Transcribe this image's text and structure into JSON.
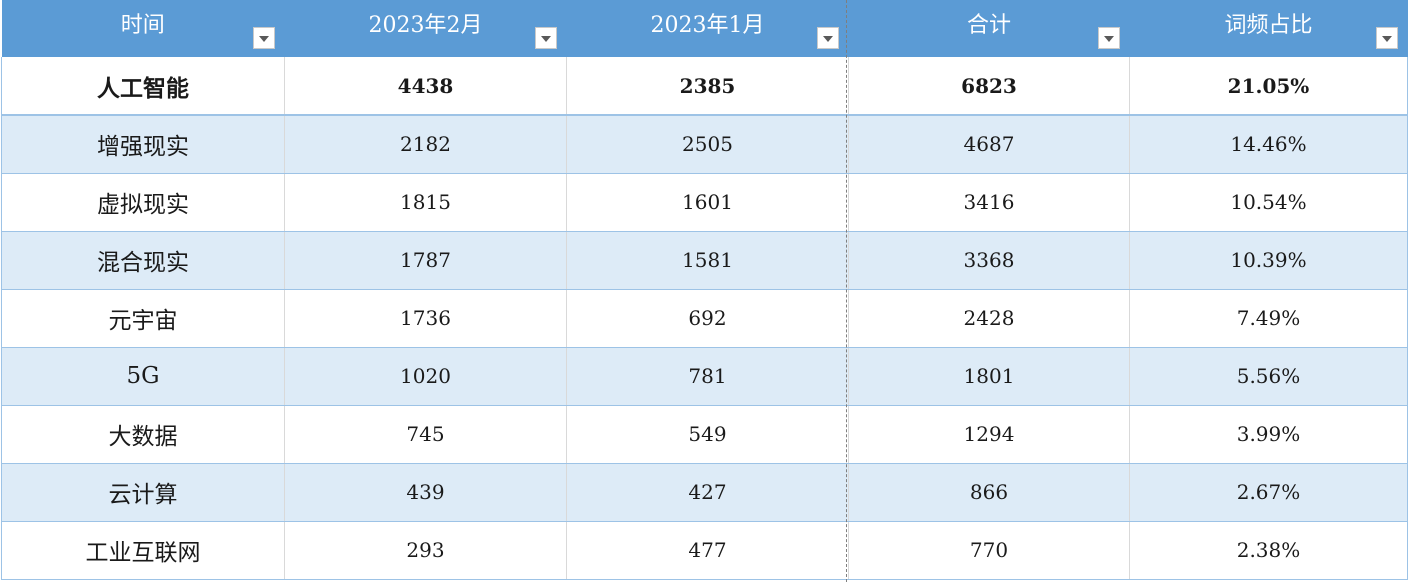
{
  "headers": [
    {
      "label": "时间"
    },
    {
      "label": "2023年2月"
    },
    {
      "label": "2023年1月"
    },
    {
      "label": "合计"
    },
    {
      "label": "词频占比"
    }
  ],
  "rows": [
    {
      "term": "人工智能",
      "feb": "4438",
      "jan": "2385",
      "total": "6823",
      "share": "21.05%"
    },
    {
      "term": "增强现实",
      "feb": "2182",
      "jan": "2505",
      "total": "4687",
      "share": "14.46%"
    },
    {
      "term": "虚拟现实",
      "feb": "1815",
      "jan": "1601",
      "total": "3416",
      "share": "10.54%"
    },
    {
      "term": "混合现实",
      "feb": "1787",
      "jan": "1581",
      "total": "3368",
      "share": "10.39%"
    },
    {
      "term": "元宇宙",
      "feb": "1736",
      "jan": "692",
      "total": "2428",
      "share": "7.49%"
    },
    {
      "term": "5G",
      "feb": "1020",
      "jan": "781",
      "total": "1801",
      "share": "5.56%"
    },
    {
      "term": "大数据",
      "feb": "745",
      "jan": "549",
      "total": "1294",
      "share": "3.99%"
    },
    {
      "term": "云计算",
      "feb": "439",
      "jan": "427",
      "total": "866",
      "share": "2.67%"
    },
    {
      "term": "工业互联网",
      "feb": "293",
      "jan": "477",
      "total": "770",
      "share": "2.38%"
    }
  ],
  "colors": {
    "header_bg": "#5b9bd5",
    "band_bg": "#ddebf7",
    "border": "#9dc3e6"
  }
}
